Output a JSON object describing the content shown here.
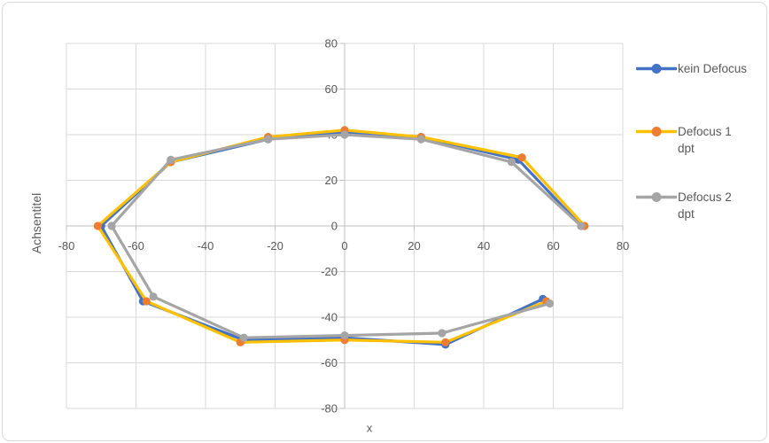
{
  "chart_data": {
    "type": "line",
    "xlabel": "x",
    "ylabel": "Achsentitel",
    "xlim": [
      -80,
      80
    ],
    "ylim": [
      -80,
      80
    ],
    "x_ticks": [
      -80,
      -60,
      -40,
      -20,
      0,
      20,
      40,
      60,
      80
    ],
    "y_ticks": [
      -80,
      -60,
      -40,
      -20,
      0,
      20,
      40,
      60,
      80
    ],
    "grid": true,
    "legend_position": "right",
    "colors": {
      "grid": "#D9D9D9",
      "axis": "#BFBFBF",
      "text": "#595959",
      "frame": "#D9D9D9"
    },
    "series": [
      {
        "id": "kein-defocus",
        "name": "kein Defocus",
        "name_lines": [
          "kein Defocus"
        ],
        "line_color": "#4472C4",
        "marker_color": "#4472C4",
        "points": [
          [
            57,
            -32
          ],
          [
            29,
            -52
          ],
          [
            0,
            -49
          ],
          [
            -29,
            -50
          ],
          [
            -58,
            -33
          ],
          [
            -70,
            0
          ],
          [
            -50,
            28
          ],
          [
            -22,
            38
          ],
          [
            0,
            41
          ],
          [
            22,
            39
          ],
          [
            50,
            29
          ],
          [
            68,
            0
          ]
        ]
      },
      {
        "id": "defocus-1-dpt",
        "name": "Defocus 1 dpt",
        "name_lines": [
          "Defocus 1",
          "dpt"
        ],
        "line_color": "#FFC000",
        "marker_color": "#ED7D31",
        "points": [
          [
            58,
            -33
          ],
          [
            29,
            -51
          ],
          [
            0,
            -50
          ],
          [
            -30,
            -51
          ],
          [
            -57,
            -33
          ],
          [
            -71,
            0
          ],
          [
            -50,
            28
          ],
          [
            -22,
            39
          ],
          [
            0,
            42
          ],
          [
            22,
            39
          ],
          [
            51,
            30
          ],
          [
            69,
            0
          ]
        ]
      },
      {
        "id": "defocus-2-dpt",
        "name": "Defocus 2 dpt",
        "name_lines": [
          "Defocus 2",
          "dpt"
        ],
        "line_color": "#A5A5A5",
        "marker_color": "#A5A5A5",
        "points": [
          [
            59,
            -34
          ],
          [
            28,
            -47
          ],
          [
            0,
            -48
          ],
          [
            -29,
            -49
          ],
          [
            -55,
            -31
          ],
          [
            -67,
            0
          ],
          [
            -50,
            29
          ],
          [
            -22,
            38
          ],
          [
            0,
            40
          ],
          [
            22,
            38
          ],
          [
            48,
            28
          ],
          [
            68,
            0
          ]
        ]
      }
    ]
  }
}
